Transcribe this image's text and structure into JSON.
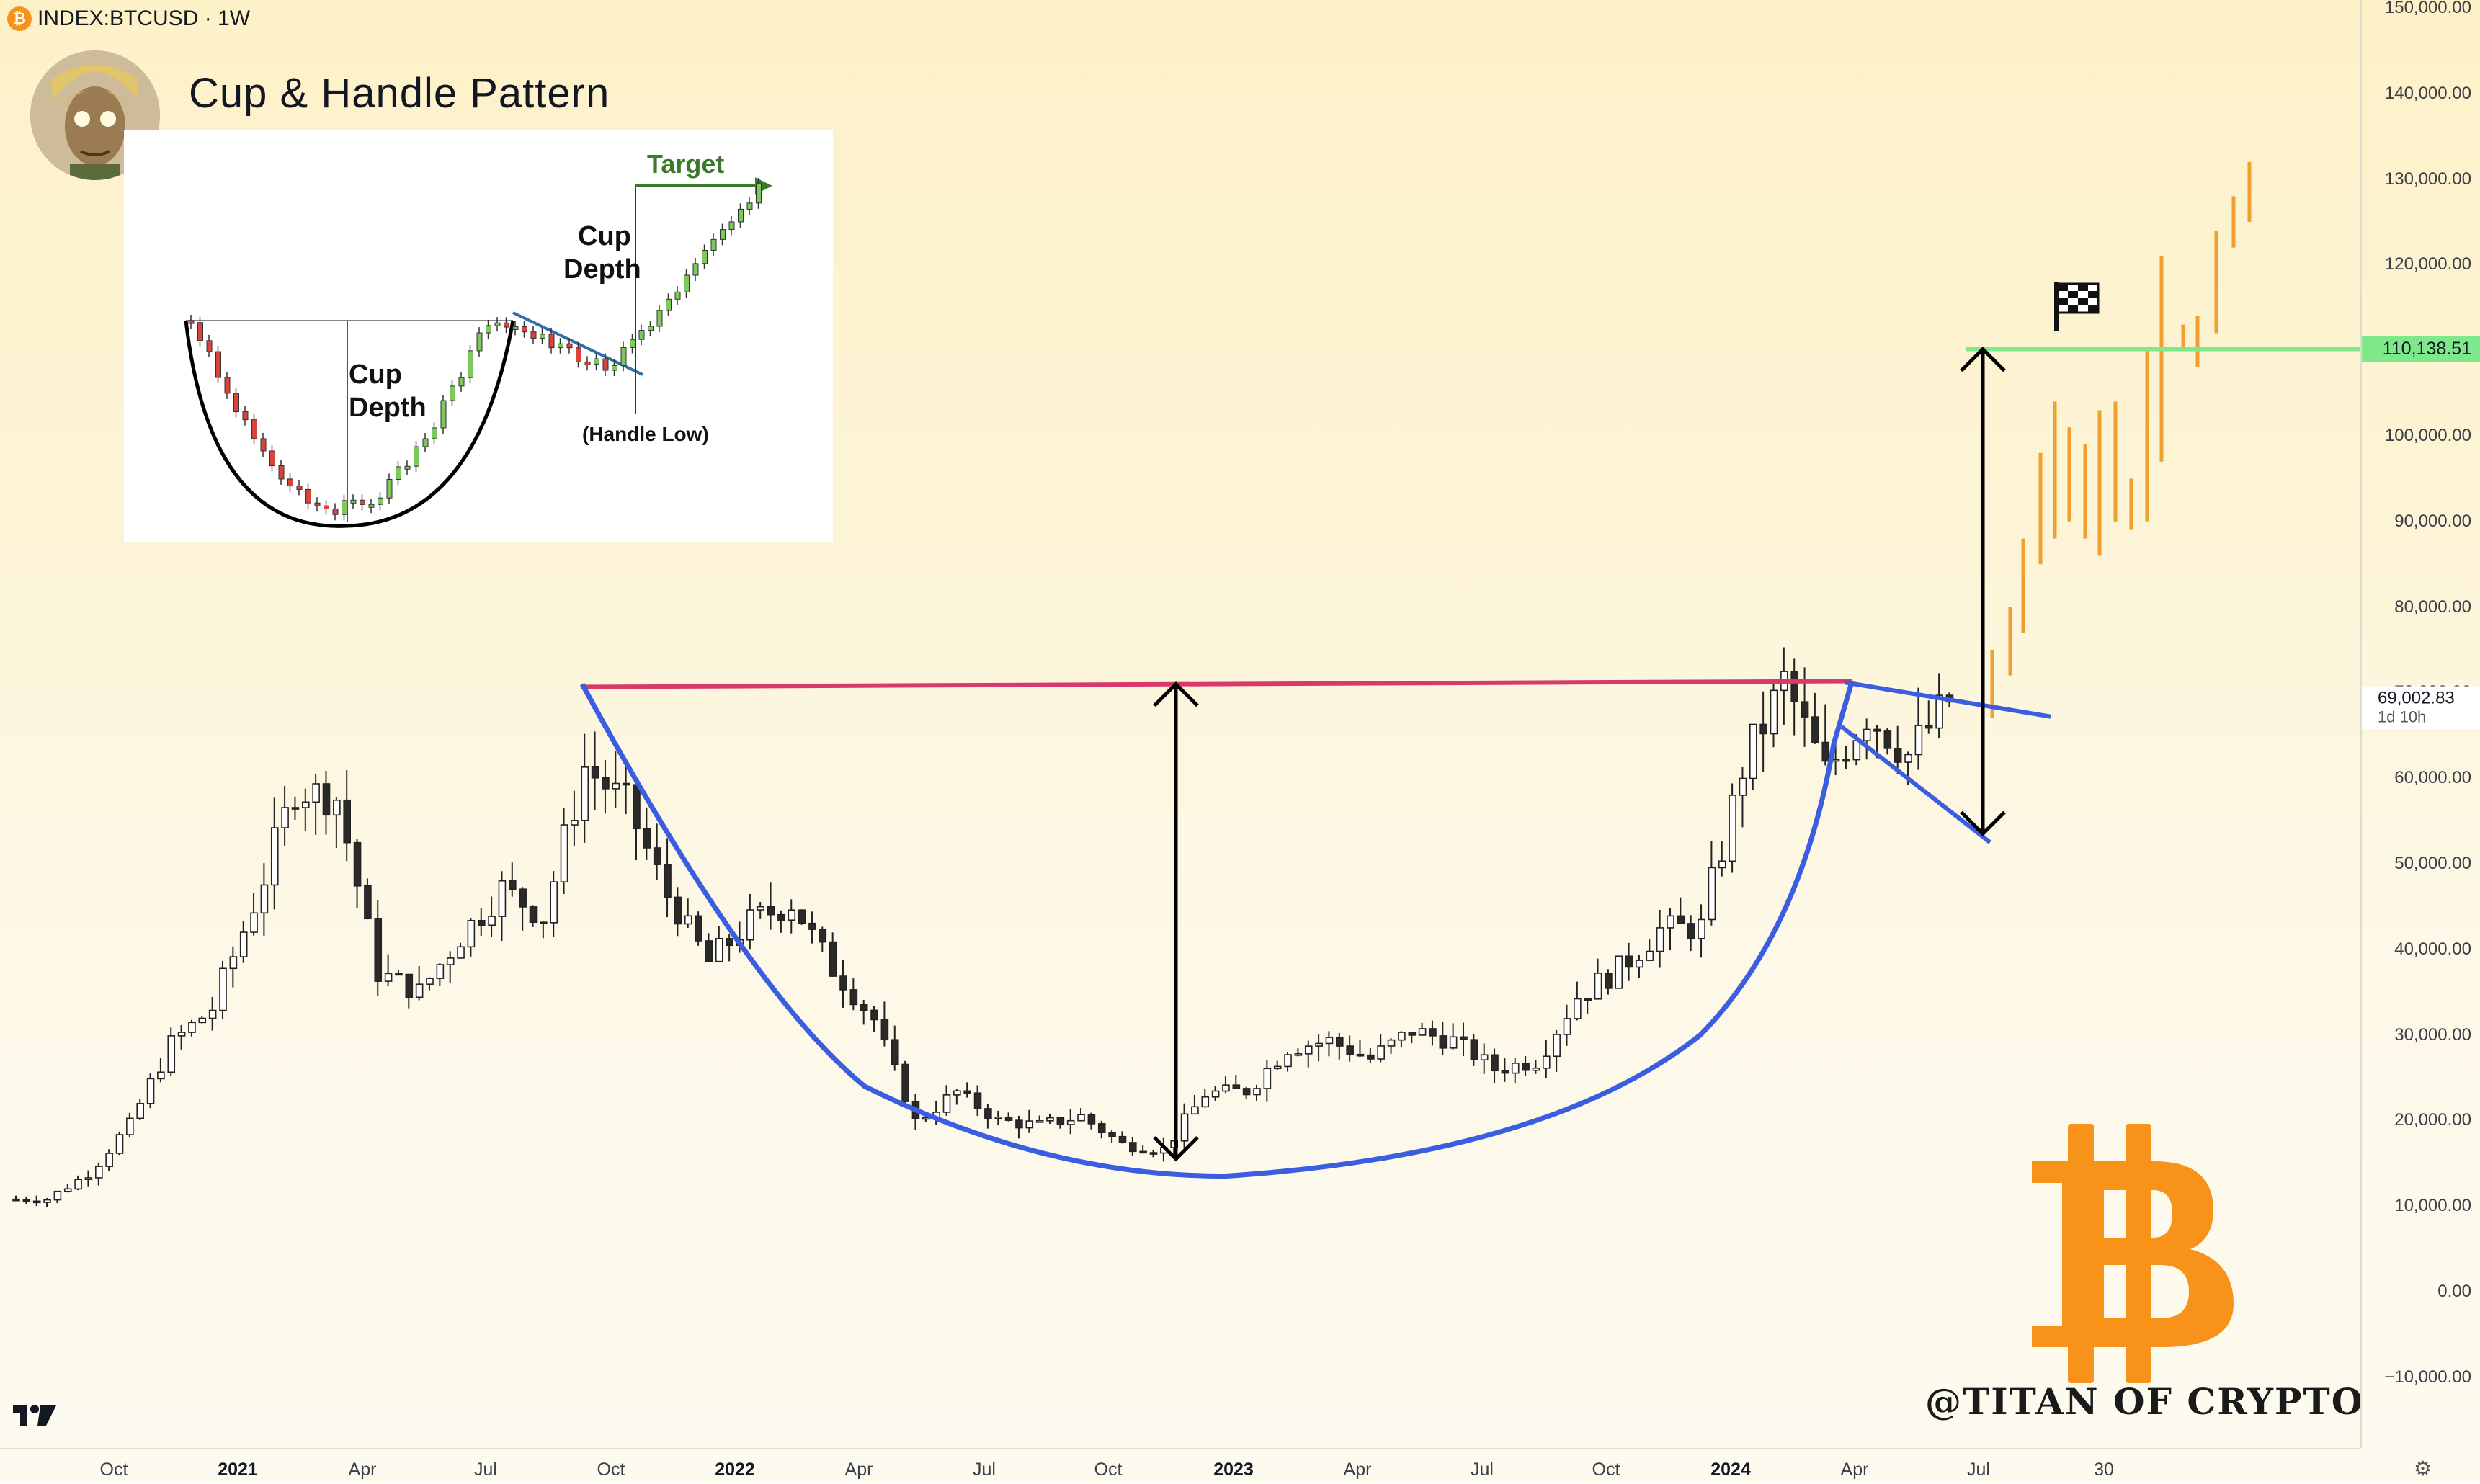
{
  "header": {
    "symbol_icon": "bitcoin-coin-icon",
    "symbol": "INDEX:BTCUSD · 1W"
  },
  "title": "Cup & Handle Pattern",
  "inset": {
    "labels": {
      "cup_depth_left": [
        "Cup",
        "Depth"
      ],
      "cup_depth_right": [
        "Cup",
        "Depth"
      ],
      "target": "Target",
      "handle_low": "(Handle Low)"
    }
  },
  "price_axis": {
    "ticks": [
      "150,000.00",
      "140,000.00",
      "130,000.00",
      "120,000.00",
      "110,000.00",
      "100,000.00",
      "90,000.00",
      "80,000.00",
      "70,000.00",
      "60,000.00",
      "50,000.00",
      "40,000.00",
      "30,000.00",
      "20,000.00",
      "10,000.00",
      "0.00",
      "−10,000.00"
    ],
    "target_label": "110,138.51",
    "current_label": "69,002.83",
    "countdown": "1d 10h"
  },
  "time_axis": {
    "ticks": [
      {
        "label": "Oct",
        "bold": false
      },
      {
        "label": "2021",
        "bold": true
      },
      {
        "label": "Apr",
        "bold": false
      },
      {
        "label": "Jul",
        "bold": false
      },
      {
        "label": "Oct",
        "bold": false
      },
      {
        "label": "2022",
        "bold": true
      },
      {
        "label": "Apr",
        "bold": false
      },
      {
        "label": "Jul",
        "bold": false
      },
      {
        "label": "Oct",
        "bold": false
      },
      {
        "label": "2023",
        "bold": true
      },
      {
        "label": "Apr",
        "bold": false
      },
      {
        "label": "Jul",
        "bold": false
      },
      {
        "label": "Oct",
        "bold": false
      },
      {
        "label": "2024",
        "bold": true
      },
      {
        "label": "Apr",
        "bold": false
      },
      {
        "label": "Jul",
        "bold": false
      },
      {
        "label": "30",
        "bold": false
      }
    ]
  },
  "watermark": "@TITAN OF CRYPTO",
  "colors": {
    "resistance": "#d9386a",
    "cup_curve": "#3b5ee0",
    "target_line": "#7ee88a",
    "projection": "#f0a030",
    "bitcoin": "#f7931a"
  },
  "chart_data": {
    "type": "candlestick",
    "title": "",
    "x_range": [
      "2020-09",
      "2024-12"
    ],
    "ylim": [
      -10000,
      150000
    ],
    "price_levels": {
      "resistance": 71000,
      "target": 110138.51,
      "current": 69002.83,
      "cup_low": 13500
    },
    "closes": [
      {
        "date": "2020-09",
        "close": 10800
      },
      {
        "date": "2020-10",
        "close": 13800
      },
      {
        "date": "2020-11",
        "close": 19500
      },
      {
        "date": "2020-12",
        "close": 29000
      },
      {
        "date": "2021-01",
        "close": 33100
      },
      {
        "date": "2021-02",
        "close": 45200
      },
      {
        "date": "2021-03",
        "close": 58800
      },
      {
        "date": "2021-04",
        "close": 57700
      },
      {
        "date": "2021-05",
        "close": 37300
      },
      {
        "date": "2021-06",
        "close": 35000
      },
      {
        "date": "2021-07",
        "close": 41500
      },
      {
        "date": "2021-08",
        "close": 47100
      },
      {
        "date": "2021-09",
        "close": 43800
      },
      {
        "date": "2021-10",
        "close": 61300
      },
      {
        "date": "2021-11",
        "close": 57000
      },
      {
        "date": "2021-12",
        "close": 46300
      },
      {
        "date": "2022-01",
        "close": 38500
      },
      {
        "date": "2022-02",
        "close": 43200
      },
      {
        "date": "2022-03",
        "close": 45500
      },
      {
        "date": "2022-04",
        "close": 37700
      },
      {
        "date": "2022-05",
        "close": 31800
      },
      {
        "date": "2022-06",
        "close": 19900
      },
      {
        "date": "2022-07",
        "close": 23300
      },
      {
        "date": "2022-08",
        "close": 20000
      },
      {
        "date": "2022-09",
        "close": 19400
      },
      {
        "date": "2022-10",
        "close": 20500
      },
      {
        "date": "2022-11",
        "close": 17200
      },
      {
        "date": "2022-12",
        "close": 16600
      },
      {
        "date": "2023-01",
        "close": 23100
      },
      {
        "date": "2023-02",
        "close": 23500
      },
      {
        "date": "2023-03",
        "close": 28500
      },
      {
        "date": "2023-04",
        "close": 29300
      },
      {
        "date": "2023-05",
        "close": 27200
      },
      {
        "date": "2023-06",
        "close": 30500
      },
      {
        "date": "2023-07",
        "close": 29300
      },
      {
        "date": "2023-08",
        "close": 26000
      },
      {
        "date": "2023-09",
        "close": 27000
      },
      {
        "date": "2023-10",
        "close": 34500
      },
      {
        "date": "2023-11",
        "close": 37700
      },
      {
        "date": "2023-12",
        "close": 42300
      },
      {
        "date": "2024-01",
        "close": 42600
      },
      {
        "date": "2024-02",
        "close": 61200
      },
      {
        "date": "2024-03",
        "close": 71300
      },
      {
        "date": "2024-04",
        "close": 60600
      },
      {
        "date": "2024-05",
        "close": 67500
      },
      {
        "date": "2024-06",
        "close": 62700
      },
      {
        "date": "2024-07",
        "close": 69000
      }
    ],
    "projection": [
      {
        "date": "2024-08",
        "close": 72000
      },
      {
        "date": "2024-09",
        "close": 95000
      },
      {
        "date": "2024-10",
        "close": 103000
      },
      {
        "date": "2024-11",
        "close": 92000
      },
      {
        "date": "2024-12",
        "close": 120000
      },
      {
        "date": "2025-01",
        "close": 130000
      }
    ]
  }
}
